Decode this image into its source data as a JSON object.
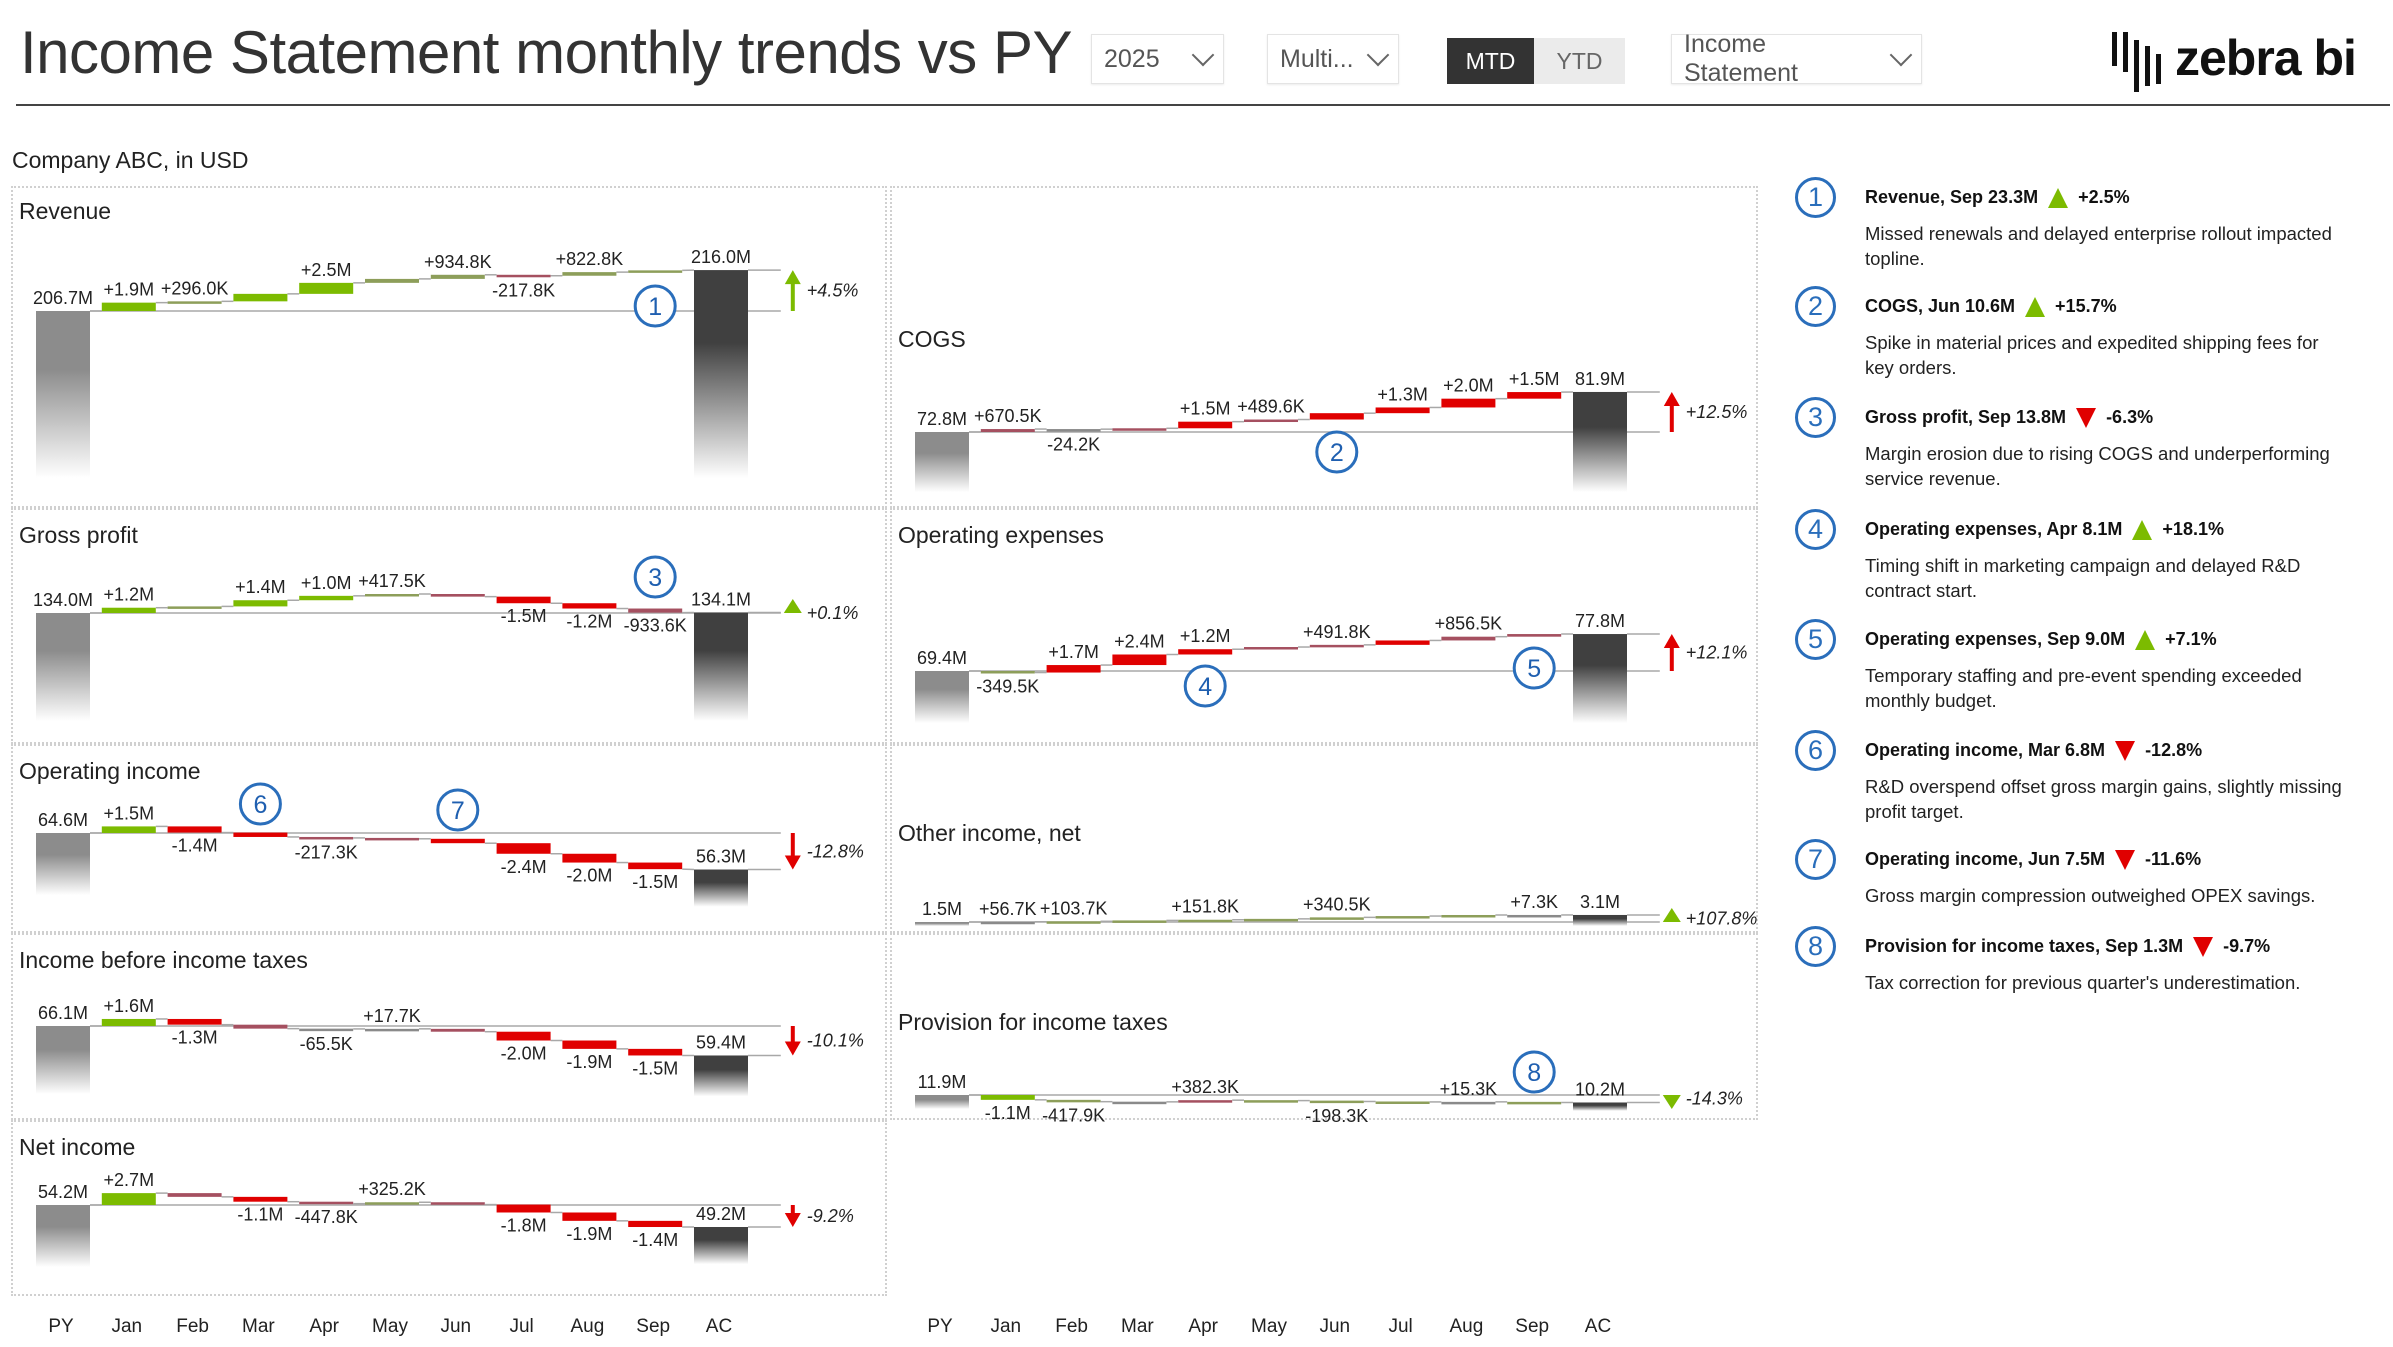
{
  "header": {
    "title": "Income Statement monthly trends vs PY",
    "year_select": "2025",
    "multi_select": "Multi...",
    "mtd_label": "MTD",
    "ytd_label": "YTD",
    "active_period": "MTD",
    "report_select": "Income Statement",
    "logo_text": "zebra bi"
  },
  "subtitle": "Company ABC, in USD",
  "months": [
    "PY",
    "Jan",
    "Feb",
    "Mar",
    "Apr",
    "May",
    "Jun",
    "Jul",
    "Aug",
    "Sep",
    "AC"
  ],
  "colors": {
    "good": "#7cbb00",
    "good_muted": "#8d9e5a",
    "bad": "#e00000",
    "bad_muted": "#a55060",
    "neutral": "#8a8a8a",
    "py": "#8c8c8c",
    "ac": "#404040",
    "marker": "#2a6ebb"
  },
  "chart_data": [
    {
      "id": "revenue",
      "type": "waterfall",
      "title": "Revenue",
      "unit": "M USD",
      "py": 206.7,
      "ac": 216.0,
      "py_label": "206.7M",
      "ac_label": "216.0M",
      "inverted": false,
      "deltas": [
        1.9,
        0.296,
        1.7,
        2.5,
        0.9,
        0.9348,
        -0.2178,
        0.8228,
        0.4
      ],
      "delta_labels": [
        "+1.9M",
        "+296.0K",
        null,
        "+2.5M",
        null,
        "+934.8K",
        "-217.8K",
        "+822.8K",
        null
      ],
      "variance_label": "+4.5%"
    },
    {
      "id": "gross-profit",
      "type": "waterfall",
      "title": "Gross profit",
      "unit": "M USD",
      "py": 134.0,
      "ac": 134.1,
      "py_label": "134.0M",
      "ac_label": "134.1M",
      "inverted": false,
      "deltas": [
        1.2,
        0.3,
        1.4,
        1.0,
        0.4175,
        -0.6,
        -1.5,
        -1.2,
        -0.9336
      ],
      "delta_labels": [
        "+1.2M",
        null,
        "+1.4M",
        "+1.0M",
        "+417.5K",
        null,
        "-1.5M",
        "-1.2M",
        "-933.6K"
      ],
      "variance_label": "+0.1%"
    },
    {
      "id": "operating-income",
      "type": "waterfall",
      "title": "Operating income",
      "unit": "M USD",
      "py": 64.6,
      "ac": 56.3,
      "py_label": "64.6M",
      "ac_label": "56.3M",
      "inverted": false,
      "deltas": [
        1.5,
        -1.4,
        -1.0,
        -0.2173,
        -0.2,
        -1.0,
        -2.4,
        -2.0,
        -1.5
      ],
      "delta_labels": [
        "+1.5M",
        "-1.4M",
        null,
        "-217.3K",
        null,
        null,
        "-2.4M",
        "-2.0M",
        "-1.5M"
      ],
      "variance_label": "-12.8%"
    },
    {
      "id": "income-before-taxes",
      "type": "waterfall",
      "title": "Income before income taxes",
      "unit": "M USD",
      "py": 66.1,
      "ac": 59.4,
      "py_label": "66.1M",
      "ac_label": "59.4M",
      "inverted": false,
      "deltas": [
        1.6,
        -1.3,
        -0.9,
        -0.0655,
        0.0177,
        -0.65,
        -2.0,
        -1.9,
        -1.5
      ],
      "delta_labels": [
        "+1.6M",
        "-1.3M",
        null,
        "-65.5K",
        "+17.7K",
        null,
        "-2.0M",
        "-1.9M",
        "-1.5M"
      ],
      "variance_label": "-10.1%"
    },
    {
      "id": "net-income",
      "type": "waterfall",
      "title": "Net income",
      "unit": "M USD",
      "py": 54.2,
      "ac": 49.2,
      "py_label": "54.2M",
      "ac_label": "49.2M",
      "inverted": false,
      "deltas": [
        2.7,
        -0.85,
        -1.1,
        -0.4478,
        0.3252,
        -0.53,
        -1.8,
        -1.9,
        -1.4
      ],
      "delta_labels": [
        "+2.7M",
        null,
        "-1.1M",
        "-447.8K",
        "+325.2K",
        null,
        "-1.8M",
        "-1.9M",
        "-1.4M"
      ],
      "variance_label": "-9.2%"
    },
    {
      "id": "cogs",
      "type": "waterfall",
      "title": "COGS",
      "unit": "M USD",
      "py": 72.8,
      "ac": 81.9,
      "py_label": "72.8M",
      "ac_label": "81.9M",
      "inverted": true,
      "deltas": [
        0.6705,
        -0.0242,
        0.2,
        1.5,
        0.4896,
        1.44,
        1.3,
        2.0,
        1.5
      ],
      "delta_labels": [
        "+670.5K",
        "-24.2K",
        null,
        "+1.5M",
        "+489.6K",
        null,
        "+1.3M",
        "+2.0M",
        "+1.5M"
      ],
      "variance_label": "+12.5%"
    },
    {
      "id": "operating-expenses",
      "type": "waterfall",
      "title": "Operating expenses",
      "unit": "M USD",
      "py": 69.4,
      "ac": 77.8,
      "py_label": "69.4M",
      "ac_label": "77.8M",
      "inverted": true,
      "deltas": [
        -0.3495,
        1.7,
        2.4,
        1.2,
        0.5,
        0.4918,
        1.0,
        0.8565,
        0.6
      ],
      "delta_labels": [
        "-349.5K",
        "+1.7M",
        "+2.4M",
        "+1.2M",
        null,
        "+491.8K",
        null,
        "+856.5K",
        null
      ],
      "variance_label": "+12.1%"
    },
    {
      "id": "other-income",
      "type": "waterfall",
      "title": "Other income, net",
      "unit": "M USD",
      "py": 1.5,
      "ac": 3.1,
      "py_label": "1.5M",
      "ac_label": "3.1M",
      "inverted": false,
      "deltas": [
        0.0567,
        0.1037,
        0.2,
        0.1518,
        0.2,
        0.3405,
        0.3,
        0.24,
        0.0073
      ],
      "delta_labels": [
        "+56.7K",
        "+103.7K",
        null,
        "+151.8K",
        null,
        "+340.5K",
        null,
        null,
        "+7.3K"
      ],
      "variance_label": "+107.8%"
    },
    {
      "id": "provision-taxes",
      "type": "waterfall",
      "title": "Provision for income taxes",
      "unit": "M USD",
      "py": 11.9,
      "ac": 10.2,
      "py_label": "11.9M",
      "ac_label": "10.2M",
      "inverted": true,
      "deltas": [
        -1.1,
        -0.4179,
        -0.04,
        0.3823,
        -0.1,
        -0.1983,
        -0.1,
        0.0153,
        -0.14
      ],
      "delta_labels": [
        "-1.1M",
        "-417.9K",
        null,
        "+382.3K",
        null,
        "-198.3K",
        null,
        "+15.3K",
        null
      ],
      "variance_label": "-14.3%"
    }
  ],
  "annotations": [
    {
      "number": "1",
      "heading": "Revenue, Sep 23.3M",
      "direction": "up",
      "pct": "+2.5%",
      "description": "Missed renewals and delayed enterprise rollout impacted topline."
    },
    {
      "number": "2",
      "heading": "COGS, Jun 10.6M",
      "direction": "up",
      "pct": "+15.7%",
      "description": "Spike in material prices and expedited shipping fees for key orders."
    },
    {
      "number": "3",
      "heading": "Gross profit, Sep 13.8M",
      "direction": "down",
      "pct": "-6.3%",
      "description": "Margin erosion due to rising COGS and underperforming service revenue."
    },
    {
      "number": "4",
      "heading": "Operating expenses, Apr 8.1M",
      "direction": "up",
      "pct": "+18.1%",
      "description": "Timing shift in marketing campaign and delayed R&D contract start."
    },
    {
      "number": "5",
      "heading": "Operating expenses, Sep 9.0M",
      "direction": "up",
      "pct": "+7.1%",
      "description": "Temporary staffing and pre-event spending exceeded monthly budget."
    },
    {
      "number": "6",
      "heading": "Operating income, Mar 6.8M",
      "direction": "down",
      "pct": "-12.8%",
      "description": "R&D overspend offset gross margin gains, slightly missing profit target."
    },
    {
      "number": "7",
      "heading": "Operating income, Jun 7.5M",
      "direction": "down",
      "pct": "-11.6%",
      "description": "Gross margin compression outweighed OPEX savings."
    },
    {
      "number": "8",
      "heading": "Provision for income taxes, Sep 1.3M",
      "direction": "down",
      "pct": "-9.7%",
      "description": "Tax correction for previous quarter's underestimation."
    }
  ]
}
